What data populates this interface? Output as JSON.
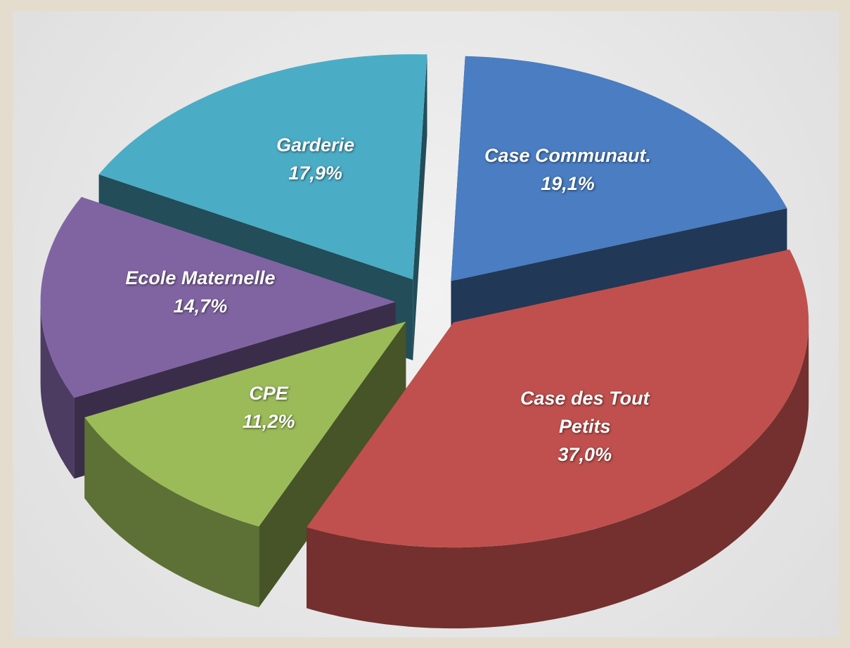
{
  "chart_data": {
    "type": "pie",
    "categories": [
      "Case Communaut.",
      "Case des Tout Petits",
      "CPE",
      "Ecole Maternelle",
      "Garderie"
    ],
    "values": [
      19.1,
      37.0,
      11.2,
      14.7,
      17.9
    ],
    "value_labels": [
      "19,1%",
      "37,0%",
      "11,2%",
      "14,7%",
      "17,9%"
    ],
    "colors": [
      "#4a7dc1",
      "#c0504d",
      "#9bbb59",
      "#8064a2",
      "#4bacc6"
    ]
  }
}
